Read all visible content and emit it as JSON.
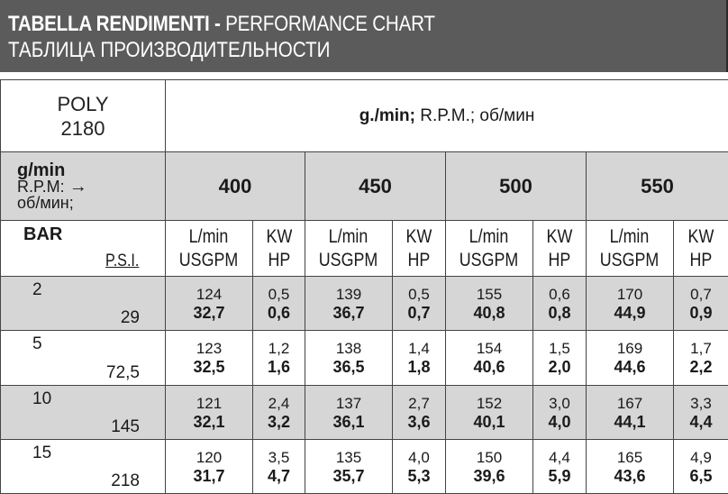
{
  "header": {
    "title_bold": "TABELLA RENDIMENTI -",
    "title_rest": " PERFORMANCE CHART",
    "title_ru": "ТАБЛИЦА ПРОИЗВОДИТЕЛЬНОСТИ"
  },
  "model": {
    "name": "POLY",
    "number": "2180"
  },
  "rpm_header": {
    "bold": "g./min;",
    "rest": " R.P.M.; об/мин"
  },
  "speed_label": {
    "gmin": "g/min",
    "rpm": "R.P.M:",
    "arrow": "→",
    "obmin": "об/мин;"
  },
  "speeds": [
    "400",
    "450",
    "500",
    "550"
  ],
  "col_heads": {
    "flow_top": "L/min",
    "flow_bottom": "USGPM",
    "power_top": "KW",
    "power_bottom": "HP"
  },
  "pressure_head": {
    "bar": "BAR",
    "psi": "P.S.I."
  },
  "rows": [
    {
      "bar": "2",
      "psi": "29",
      "shaded": true,
      "cells": [
        {
          "lmin": "124",
          "usgpm": "32,7",
          "kw": "0,5",
          "hp": "0,6"
        },
        {
          "lmin": "139",
          "usgpm": "36,7",
          "kw": "0,5",
          "hp": "0,7"
        },
        {
          "lmin": "155",
          "usgpm": "40,8",
          "kw": "0,6",
          "hp": "0,8"
        },
        {
          "lmin": "170",
          "usgpm": "44,9",
          "kw": "0,7",
          "hp": "0,9"
        }
      ]
    },
    {
      "bar": "5",
      "psi": "72,5",
      "shaded": false,
      "cells": [
        {
          "lmin": "123",
          "usgpm": "32,5",
          "kw": "1,2",
          "hp": "1,6"
        },
        {
          "lmin": "138",
          "usgpm": "36,5",
          "kw": "1,4",
          "hp": "1,8"
        },
        {
          "lmin": "154",
          "usgpm": "40,6",
          "kw": "1,5",
          "hp": "2,0"
        },
        {
          "lmin": "169",
          "usgpm": "44,6",
          "kw": "1,7",
          "hp": "2,2"
        }
      ]
    },
    {
      "bar": "10",
      "psi": "145",
      "shaded": true,
      "cells": [
        {
          "lmin": "121",
          "usgpm": "32,1",
          "kw": "2,4",
          "hp": "3,2"
        },
        {
          "lmin": "137",
          "usgpm": "36,1",
          "kw": "2,7",
          "hp": "3,6"
        },
        {
          "lmin": "152",
          "usgpm": "40,1",
          "kw": "3,0",
          "hp": "4,0"
        },
        {
          "lmin": "167",
          "usgpm": "44,1",
          "kw": "3,3",
          "hp": "4,4"
        }
      ]
    },
    {
      "bar": "15",
      "psi": "218",
      "shaded": false,
      "cells": [
        {
          "lmin": "120",
          "usgpm": "31,7",
          "kw": "3,5",
          "hp": "4,7"
        },
        {
          "lmin": "135",
          "usgpm": "35,7",
          "kw": "4,0",
          "hp": "5,3"
        },
        {
          "lmin": "150",
          "usgpm": "39,6",
          "kw": "4,4",
          "hp": "5,9"
        },
        {
          "lmin": "165",
          "usgpm": "43,6",
          "kw": "4,9",
          "hp": "6,5"
        }
      ]
    }
  ]
}
